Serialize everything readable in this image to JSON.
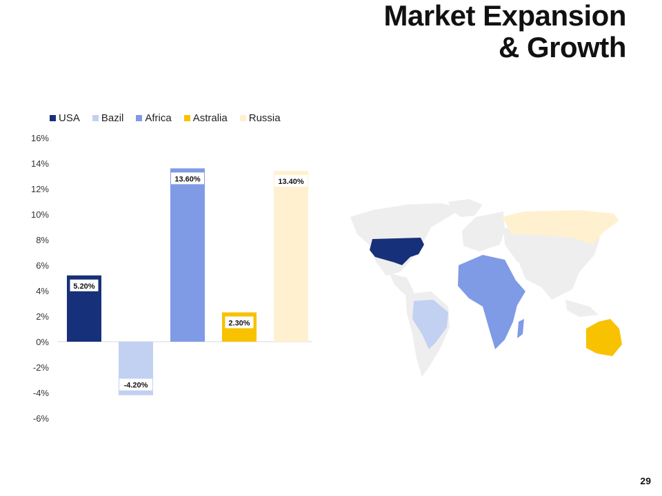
{
  "slide": {
    "title_line1": "Market Expansion",
    "title_line2": "& Growth",
    "page_number": "29"
  },
  "colors": {
    "usa": "#17307a",
    "brazil": "#c2d0f2",
    "africa": "#7f9be6",
    "australia": "#f8c200",
    "russia": "#fff1cf",
    "land": "#eeeeee"
  },
  "chart_data": {
    "type": "bar",
    "series": [
      {
        "name": "USA",
        "value": 5.2,
        "label": "5.20%"
      },
      {
        "name": "Bazil",
        "value": -4.2,
        "label": "-4.20%"
      },
      {
        "name": "Africa",
        "value": 13.6,
        "label": "13.60%"
      },
      {
        "name": "Astralia",
        "value": 2.3,
        "label": "2.30%"
      },
      {
        "name": "Russia",
        "value": 13.4,
        "label": "13.40%"
      }
    ],
    "ylim": [
      -6,
      16
    ],
    "yticks": [
      "16%",
      "14%",
      "12%",
      "10%",
      "8%",
      "6%",
      "4%",
      "2%",
      "0%",
      "-2%",
      "-4%",
      "-6%"
    ],
    "legend_position": "top",
    "grid": false
  }
}
